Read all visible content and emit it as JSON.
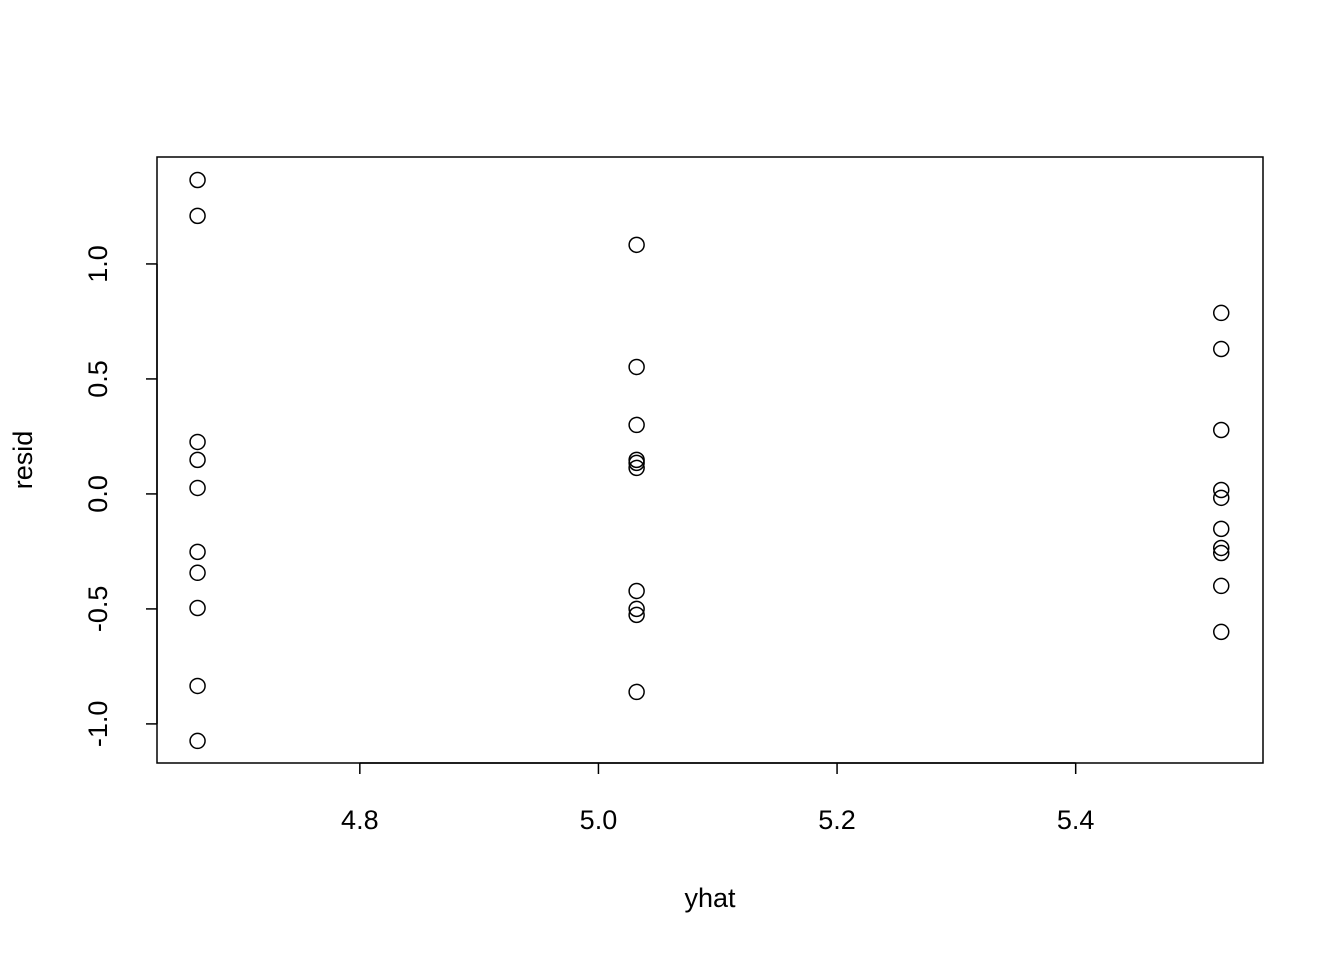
{
  "chart_data": {
    "type": "scatter",
    "x_label": "yhat",
    "y_label": "resid",
    "series": [
      {
        "color": "#000000",
        "x": [
          4.664,
          4.664,
          4.664,
          4.664,
          4.664,
          4.664,
          4.664,
          4.664,
          4.664,
          4.664,
          5.032,
          5.032,
          5.032,
          5.032,
          5.032,
          5.032,
          5.032,
          5.032,
          5.032,
          5.032,
          5.522,
          5.522,
          5.522,
          5.522,
          5.522,
          5.522,
          5.522,
          5.522,
          5.522,
          5.522
        ],
        "values": [
          1.365,
          1.209,
          0.226,
          0.148,
          0.026,
          -0.252,
          -0.343,
          -0.496,
          -0.835,
          -1.074,
          1.083,
          0.552,
          0.3,
          0.148,
          0.135,
          0.113,
          -0.422,
          -0.5,
          -0.526,
          -0.861,
          0.787,
          0.63,
          0.278,
          0.017,
          -0.017,
          -0.152,
          -0.235,
          -0.257,
          -0.4,
          -0.6
        ]
      }
    ],
    "xlim": [
      4.63,
      5.557
    ],
    "ylim": [
      -1.17,
      1.465
    ],
    "xticks": [
      4.8,
      {
        "value": 5,
        "label": "5.0"
      },
      5.2,
      5.4
    ],
    "yticks": [
      {
        "value": -1,
        "label": "-1.0"
      },
      -0.5,
      {
        "value": 0,
        "label": "0.0"
      },
      0.5,
      {
        "value": 1,
        "label": "1.0"
      }
    ]
  }
}
